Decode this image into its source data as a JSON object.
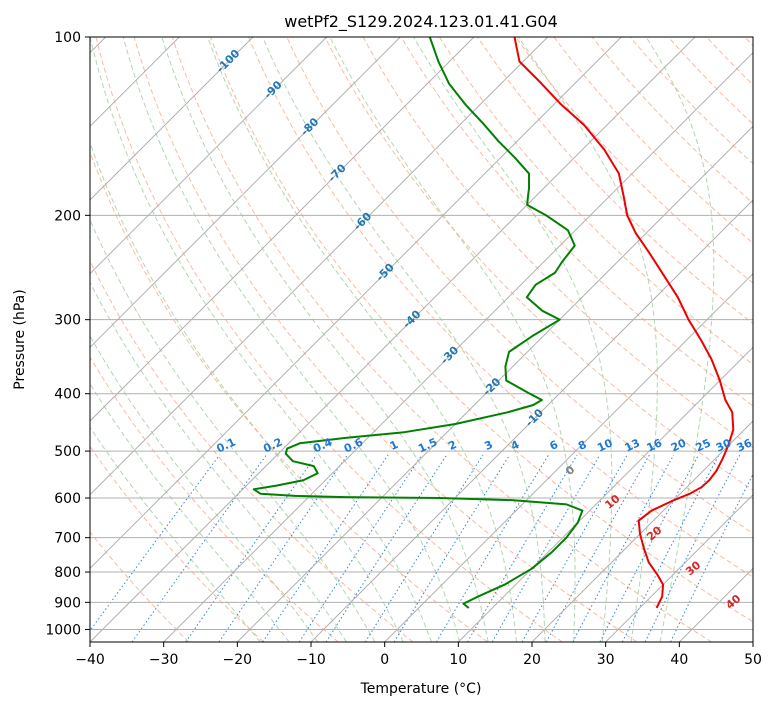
{
  "chart_data": {
    "type": "line",
    "subtype": "skew-t log-p",
    "title": "wetPf2_S129.2024.123.01.41.G04",
    "xlabel": "Temperature (°C)",
    "ylabel": "Pressure (hPa)",
    "xlim": [
      -40,
      50
    ],
    "ylim": [
      1050,
      100
    ],
    "y_scale": "log",
    "grid": true,
    "x_ticks": [
      -40,
      -30,
      -20,
      -10,
      0,
      10,
      20,
      30,
      40,
      50
    ],
    "x_tick_labels": [
      "−40",
      "−30",
      "−20",
      "−10",
      "0",
      "10",
      "20",
      "30",
      "40",
      "50"
    ],
    "y_ticks": [
      100,
      200,
      300,
      400,
      500,
      600,
      700,
      800,
      900,
      1000
    ],
    "y_tick_labels": [
      "100",
      "200",
      "300",
      "400",
      "500",
      "600",
      "700",
      "800",
      "900",
      "1000"
    ],
    "colors": {
      "temperature": "#ee0000",
      "dewpoint": "#008000",
      "isotherm_grid": "#b0b0b0",
      "dry_adiabat": "#f4a582",
      "moist_adiabat": "#9ccc9c",
      "mixing_ratio": "#1f78d1",
      "isotherm_label": "#1f77b4",
      "dry_adiabat_label": "#d62728",
      "zero_label": "#7f7f7f"
    },
    "series": [
      {
        "name": "temperature",
        "points": [
          [
            32.3,
            920
          ],
          [
            31.5,
            880
          ],
          [
            30.0,
            840
          ],
          [
            28.0,
            810
          ],
          [
            25.0,
            770
          ],
          [
            22.5,
            730
          ],
          [
            20.0,
            690
          ],
          [
            18.0,
            655
          ],
          [
            18.4,
            630
          ],
          [
            20.0,
            605
          ],
          [
            21.3,
            590
          ],
          [
            22.0,
            575
          ],
          [
            22.1,
            560
          ],
          [
            21.8,
            540
          ],
          [
            21.0,
            515
          ],
          [
            20.0,
            490
          ],
          [
            18.5,
            460
          ],
          [
            16.0,
            430
          ],
          [
            13.4,
            410
          ],
          [
            10.0,
            380
          ],
          [
            6.0,
            350
          ],
          [
            2.0,
            325
          ],
          [
            -2.5,
            300
          ],
          [
            -7.0,
            275
          ],
          [
            -12.0,
            252
          ],
          [
            -17.0,
            231
          ],
          [
            -21.5,
            214
          ],
          [
            -25.0,
            200
          ],
          [
            -28.0,
            186
          ],
          [
            -31.8,
            170
          ],
          [
            -37.0,
            155
          ],
          [
            -43.0,
            141
          ],
          [
            -49.0,
            130
          ],
          [
            -55.0,
            119
          ],
          [
            -60.5,
            110
          ],
          [
            -64.5,
            100
          ]
        ]
      },
      {
        "name": "dewpoint",
        "points": [
          [
            6.8,
            920
          ],
          [
            5.5,
            905
          ],
          [
            6.5,
            880
          ],
          [
            8.5,
            840
          ],
          [
            10.0,
            790
          ],
          [
            10.5,
            740
          ],
          [
            10.5,
            700
          ],
          [
            10.0,
            660
          ],
          [
            9.0,
            630
          ],
          [
            6.0,
            615
          ],
          [
            -2.0,
            605
          ],
          [
            -12.0,
            600
          ],
          [
            -25.0,
            598
          ],
          [
            -32.0,
            595
          ],
          [
            -37.0,
            590
          ],
          [
            -38.5,
            580
          ],
          [
            -36.0,
            572
          ],
          [
            -33.0,
            560
          ],
          [
            -32.0,
            545
          ],
          [
            -33.5,
            530
          ],
          [
            -37.0,
            520
          ],
          [
            -39.0,
            505
          ],
          [
            -39.5,
            495
          ],
          [
            -38.5,
            485
          ],
          [
            -33.0,
            475
          ],
          [
            -26.0,
            465
          ],
          [
            -20.0,
            450
          ],
          [
            -14.5,
            430
          ],
          [
            -12.0,
            418
          ],
          [
            -11.5,
            410
          ],
          [
            -14.0,
            400
          ],
          [
            -19.0,
            380
          ],
          [
            -21.0,
            360
          ],
          [
            -22.5,
            340
          ],
          [
            -21.5,
            320
          ],
          [
            -20.0,
            300
          ],
          [
            -23.5,
            290
          ],
          [
            -27.5,
            275
          ],
          [
            -28.0,
            262
          ],
          [
            -27.0,
            250
          ],
          [
            -27.5,
            240
          ],
          [
            -28.0,
            225
          ],
          [
            -31.0,
            212
          ],
          [
            -36.0,
            200
          ],
          [
            -40.0,
            192
          ],
          [
            -41.0,
            186
          ],
          [
            -42.0,
            180
          ],
          [
            -44.0,
            170
          ],
          [
            -48.0,
            160
          ],
          [
            -52.5,
            150
          ],
          [
            -57.0,
            140
          ],
          [
            -62.0,
            130
          ],
          [
            -67.0,
            120
          ],
          [
            -71.5,
            110
          ],
          [
            -76.0,
            100
          ]
        ]
      }
    ],
    "isotherm_labels": [
      {
        "text": "-100",
        "t": -100
      },
      {
        "text": "-90",
        "t": -90
      },
      {
        "text": "-80",
        "t": -80
      },
      {
        "text": "-70",
        "t": -70
      },
      {
        "text": "-60",
        "t": -60
      },
      {
        "text": "-50",
        "t": -50
      },
      {
        "text": "-40",
        "t": -40
      },
      {
        "text": "-30",
        "t": -30
      },
      {
        "text": "-20",
        "t": -20
      },
      {
        "text": "-10",
        "t": -10
      }
    ],
    "mixing_ratio_labels": [
      {
        "text": "0.1",
        "w": 0.1
      },
      {
        "text": "0.2",
        "w": 0.2
      },
      {
        "text": "0.4",
        "w": 0.4
      },
      {
        "text": "0.6",
        "w": 0.6
      },
      {
        "text": "1",
        "w": 1
      },
      {
        "text": "1.5",
        "w": 1.5
      },
      {
        "text": "2",
        "w": 2
      },
      {
        "text": "3",
        "w": 3
      },
      {
        "text": "4",
        "w": 4
      },
      {
        "text": "6",
        "w": 6
      },
      {
        "text": "8",
        "w": 8
      },
      {
        "text": "10",
        "w": 10
      },
      {
        "text": "13",
        "w": 13
      },
      {
        "text": "16",
        "w": 16
      },
      {
        "text": "20",
        "w": 20
      },
      {
        "text": "25",
        "w": 25
      },
      {
        "text": "30",
        "w": 30
      },
      {
        "text": "36",
        "w": 36
      }
    ],
    "dry_adiabat_labels": [
      {
        "text": "0",
        "t": 0
      },
      {
        "text": "10",
        "t": 10
      },
      {
        "text": "20",
        "t": 20
      },
      {
        "text": "30",
        "t": 30
      },
      {
        "text": "40",
        "t": 40
      }
    ]
  }
}
